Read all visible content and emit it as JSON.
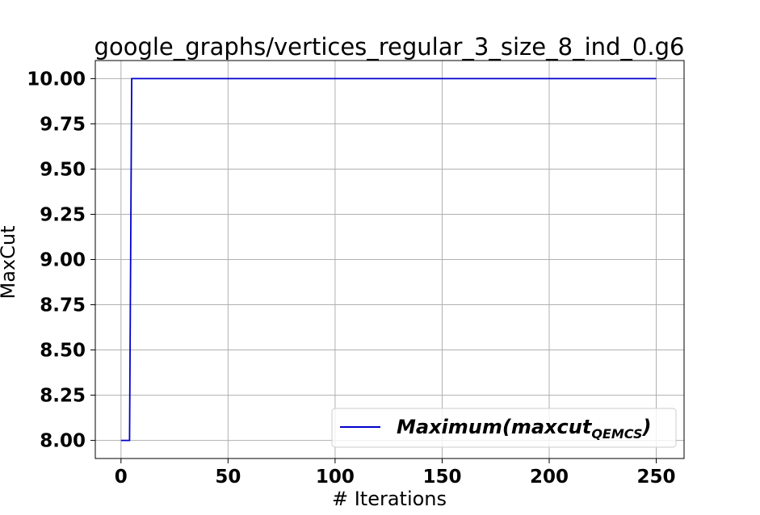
{
  "chart_data": {
    "type": "line",
    "title": "google_graphs/vertices_regular_3_size_8_ind_0.g6",
    "xlabel": "# Iterations",
    "ylabel": "MaxCut",
    "xlim": [
      -12,
      263
    ],
    "ylim": [
      7.9,
      10.1
    ],
    "xticks": [
      0,
      50,
      100,
      150,
      200,
      250
    ],
    "xtick_labels": [
      "0",
      "50",
      "100",
      "150",
      "200",
      "250"
    ],
    "yticks": [
      8.0,
      8.25,
      8.5,
      8.75,
      9.0,
      9.25,
      9.5,
      9.75,
      10.0
    ],
    "ytick_labels": [
      "8.00",
      "8.25",
      "8.50",
      "8.75",
      "9.00",
      "9.25",
      "9.50",
      "9.75",
      "10.00"
    ],
    "grid": true,
    "legend_position": "lower-right",
    "series": [
      {
        "name": "Maximum(maxcut",
        "name_subscript": "QEMCS",
        "name_suffix": ")",
        "color": "#0000cc",
        "x": [
          0,
          4,
          5,
          250
        ],
        "y": [
          8.0,
          8.0,
          10.0,
          10.0
        ]
      }
    ]
  },
  "colors": {
    "grid": "#b0b0b0",
    "axes": "#000000",
    "background": "#ffffff"
  }
}
